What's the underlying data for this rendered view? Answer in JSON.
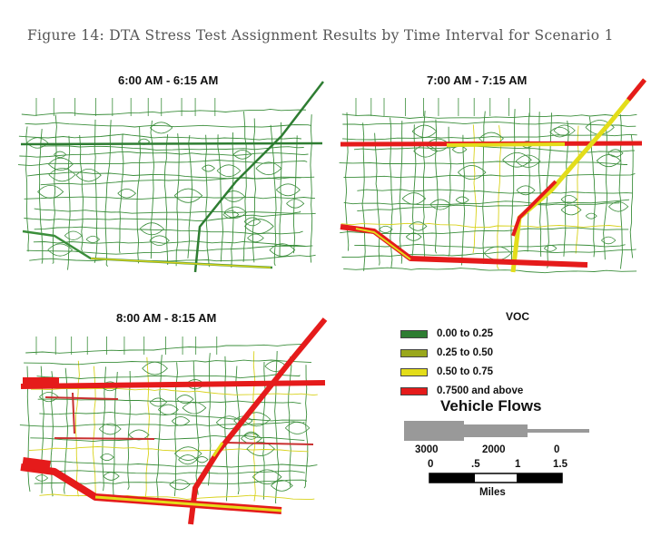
{
  "caption": "Figure 14: DTA Stress Test Assignment Results by Time Interval for Scenario 1",
  "panels": [
    {
      "title": "6:00 AM - 6:15 AM"
    },
    {
      "title": "7:00 AM - 7:15 AM"
    },
    {
      "title": "8:00 AM - 8:15 AM"
    }
  ],
  "legend": {
    "title": "VOC",
    "items": [
      {
        "label": "0.00 to 0.25",
        "color": "#2e7d32"
      },
      {
        "label": "0.25 to 0.50",
        "color": "#9aa81c"
      },
      {
        "label": "0.50 to 0.75",
        "color": "#e3dd1a"
      },
      {
        "label": "0.7500 and above",
        "color": "#e51b1b"
      }
    ],
    "vehicle_flows_title": "Vehicle Flows",
    "flow_labels": [
      "3000",
      "2000",
      "0"
    ],
    "scale_labels": [
      "0",
      ".5",
      "1",
      "1.5"
    ],
    "scale_unit": "Miles"
  },
  "colors": {
    "network_green": "#3b8e3b",
    "congestion_red": "#e51b1b",
    "moderate_yellow": "#e3dd1a",
    "flow_bar_gray": "#999999"
  }
}
